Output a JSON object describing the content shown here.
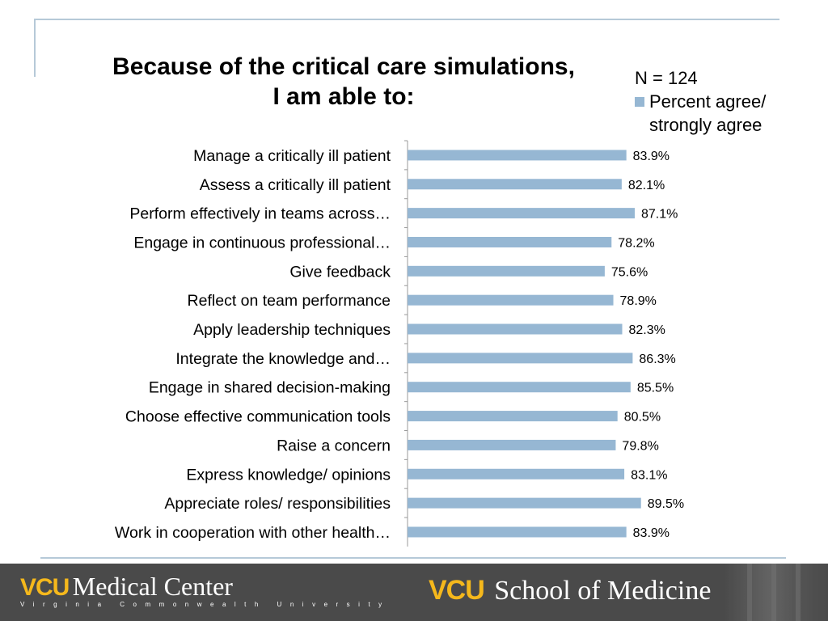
{
  "title": {
    "line1": "Because of the critical care simulations,",
    "line2": "I am able to:"
  },
  "legend": {
    "n_text": "N = 124",
    "series_label": "Percent agree/ strongly agree"
  },
  "colors": {
    "bar": "#96b7d3",
    "axis": "#999999",
    "footer_bg": "#4a4a4a",
    "vcu_gold": "#f5b81c"
  },
  "chart_data": {
    "type": "bar",
    "orientation": "horizontal",
    "categories": [
      "Manage a critically ill patient",
      "Assess a critically ill patient",
      "Perform effectively in teams across…",
      "Engage in continuous professional…",
      "Give feedback",
      "Reflect on team performance",
      "Apply leadership techniques",
      "Integrate the knowledge and…",
      "Engage in shared decision-making",
      "Choose effective communication tools",
      "Raise a concern",
      "Express knowledge/ opinions",
      "Appreciate roles/ responsibilities",
      "Work in cooperation with other health…"
    ],
    "series": [
      {
        "name": "Percent agree/ strongly agree",
        "values": [
          83.9,
          82.1,
          87.1,
          78.2,
          75.6,
          78.9,
          82.3,
          86.3,
          85.5,
          80.5,
          79.8,
          83.1,
          89.5,
          83.9
        ]
      }
    ],
    "value_labels": [
      "83.9%",
      "82.1%",
      "87.1%",
      "78.2%",
      "75.6%",
      "78.9%",
      "82.3%",
      "86.3%",
      "85.5%",
      "80.5%",
      "79.8%",
      "83.1%",
      "89.5%",
      "83.9%"
    ],
    "xlim": [
      0,
      100
    ],
    "grid": false,
    "legend_position": "top-right"
  },
  "footer": {
    "left_logo_vcu": "VCU",
    "left_logo_text": "Medical Center",
    "left_logo_sub": "Virginia Commonwealth University",
    "right_logo_vcu": "VCU",
    "right_logo_text": "School of Medicine"
  }
}
